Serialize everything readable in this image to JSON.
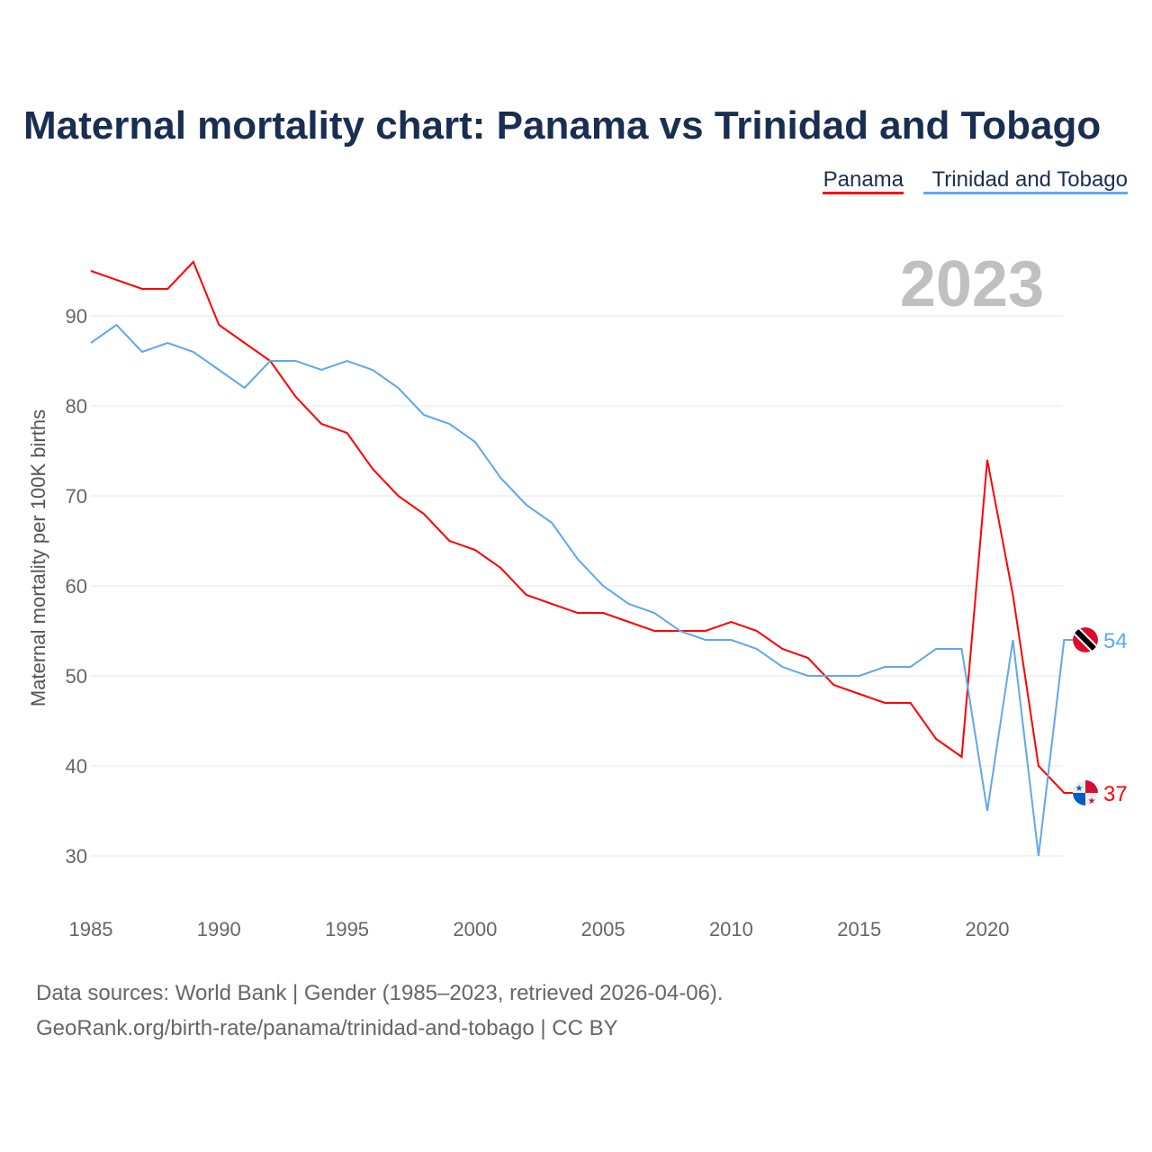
{
  "chart_data": {
    "type": "line",
    "title": "Maternal mortality chart: Panama vs Trinidad and Tobago",
    "ylabel": "Maternal mortality per 100K births",
    "xlabel": "",
    "year_label": "2023",
    "xlim": [
      1985,
      2023
    ],
    "ylim": [
      25,
      100
    ],
    "grid": true,
    "legend_placement": "top-right",
    "x_ticks": [
      "1985",
      "1990",
      "1995",
      "2000",
      "2005",
      "2010",
      "2015",
      "2020"
    ],
    "y_ticks": [
      "30",
      "40",
      "50",
      "60",
      "70",
      "80",
      "90"
    ],
    "x": [
      1985,
      1986,
      1987,
      1988,
      1989,
      1990,
      1991,
      1992,
      1993,
      1994,
      1995,
      1996,
      1997,
      1998,
      1999,
      2000,
      2001,
      2002,
      2003,
      2004,
      2005,
      2006,
      2007,
      2008,
      2009,
      2010,
      2011,
      2012,
      2013,
      2014,
      2015,
      2016,
      2017,
      2018,
      2019,
      2020,
      2021,
      2022,
      2023
    ],
    "series": [
      {
        "name": "Panama",
        "color": "#ff0000",
        "end_label": "37",
        "flag": "panama-flag",
        "values": [
          95,
          94,
          93,
          93,
          96,
          89,
          87,
          85,
          81,
          78,
          77,
          73,
          70,
          68,
          65,
          64,
          62,
          59,
          58,
          57,
          57,
          56,
          55,
          55,
          55,
          56,
          55,
          53,
          52,
          49,
          48,
          47,
          47,
          43,
          41,
          74,
          59,
          40,
          37
        ]
      },
      {
        "name": "Trinidad and Tobago",
        "color": "#5fa8ee",
        "end_label": "54",
        "flag": "trinidad-flag",
        "values": [
          87,
          89,
          86,
          87,
          86,
          84,
          82,
          85,
          85,
          84,
          85,
          84,
          82,
          79,
          78,
          76,
          72,
          69,
          67,
          63,
          60,
          58,
          57,
          55,
          54,
          54,
          53,
          51,
          50,
          50,
          50,
          51,
          51,
          53,
          53,
          35,
          54,
          30,
          54
        ]
      }
    ]
  },
  "footer": {
    "line1": "Data sources: World Bank | Gender (1985–2023, retrieved 2026-04-06).",
    "line2": "GeoRank.org/birth-rate/panama/trinidad-and-tobago | CC BY"
  }
}
